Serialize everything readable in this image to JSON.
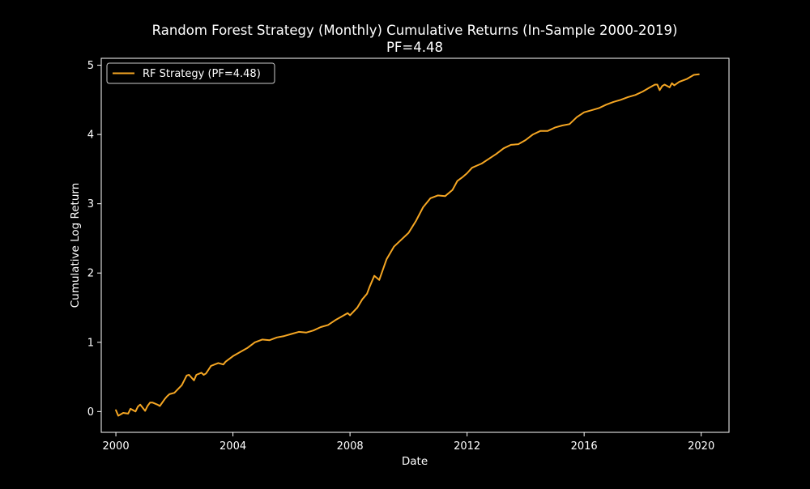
{
  "chart_data": {
    "type": "line",
    "title": "Random Forest Strategy (Monthly) Cumulative Returns (In-Sample 2000-2019)",
    "subtitle": "PF=4.48",
    "xlabel": "Date",
    "ylabel": "Cumulative Log Return",
    "xlim": [
      1999.5,
      2020.95
    ],
    "ylim": [
      -0.3,
      5.1
    ],
    "x_ticks": [
      2000,
      2004,
      2008,
      2012,
      2016,
      2020
    ],
    "x_tick_labels": [
      "2000",
      "2004",
      "2008",
      "2012",
      "2016",
      "2020"
    ],
    "y_ticks": [
      0,
      1,
      2,
      3,
      4,
      5
    ],
    "y_tick_labels": [
      "0",
      "1",
      "2",
      "3",
      "4",
      "5"
    ],
    "legend_position": "top-left",
    "grid": false,
    "colors": {
      "background": "#000000",
      "axes": "#ffffff",
      "series": "#f5a623"
    },
    "series": [
      {
        "name": "RF Strategy (PF=4.48)",
        "x": [
          2000.0,
          2000.08,
          2000.25,
          2000.42,
          2000.5,
          2000.67,
          2000.75,
          2000.83,
          2001.0,
          2001.08,
          2001.17,
          2001.25,
          2001.42,
          2001.5,
          2001.67,
          2001.75,
          2001.83,
          2002.0,
          2002.25,
          2002.42,
          2002.5,
          2002.67,
          2002.75,
          2002.92,
          2003.0,
          2003.08,
          2003.25,
          2003.5,
          2003.67,
          2003.75,
          2004.0,
          2004.25,
          2004.5,
          2004.75,
          2005.0,
          2005.25,
          2005.5,
          2005.75,
          2006.0,
          2006.25,
          2006.5,
          2006.75,
          2007.0,
          2007.25,
          2007.5,
          2007.75,
          2007.92,
          2008.0,
          2008.25,
          2008.42,
          2008.5,
          2008.58,
          2008.67,
          2008.83,
          2009.0,
          2009.25,
          2009.5,
          2009.75,
          2010.0,
          2010.25,
          2010.5,
          2010.75,
          2011.0,
          2011.25,
          2011.5,
          2011.67,
          2011.83,
          2012.0,
          2012.17,
          2012.33,
          2012.5,
          2012.75,
          2013.0,
          2013.25,
          2013.5,
          2013.75,
          2014.0,
          2014.25,
          2014.5,
          2014.75,
          2015.0,
          2015.25,
          2015.5,
          2015.75,
          2016.0,
          2016.25,
          2016.5,
          2016.75,
          2017.0,
          2017.25,
          2017.5,
          2017.75,
          2018.0,
          2018.25,
          2018.42,
          2018.5,
          2018.58,
          2018.67,
          2018.75,
          2018.92,
          2019.0,
          2019.08,
          2019.25,
          2019.5,
          2019.75,
          2019.92
        ],
        "values": [
          0.02,
          -0.06,
          -0.02,
          -0.03,
          0.04,
          0.0,
          0.07,
          0.1,
          0.01,
          0.08,
          0.13,
          0.13,
          0.1,
          0.08,
          0.18,
          0.22,
          0.25,
          0.27,
          0.38,
          0.52,
          0.53,
          0.45,
          0.53,
          0.56,
          0.53,
          0.55,
          0.66,
          0.7,
          0.68,
          0.72,
          0.8,
          0.86,
          0.92,
          1.0,
          1.04,
          1.03,
          1.07,
          1.09,
          1.12,
          1.15,
          1.14,
          1.17,
          1.22,
          1.25,
          1.32,
          1.38,
          1.42,
          1.39,
          1.5,
          1.62,
          1.66,
          1.7,
          1.8,
          1.96,
          1.9,
          2.2,
          2.38,
          2.48,
          2.58,
          2.75,
          2.95,
          3.08,
          3.12,
          3.11,
          3.2,
          3.33,
          3.38,
          3.44,
          3.52,
          3.55,
          3.58,
          3.65,
          3.72,
          3.8,
          3.85,
          3.86,
          3.92,
          4.0,
          4.05,
          4.05,
          4.1,
          4.13,
          4.15,
          4.25,
          4.32,
          4.35,
          4.38,
          4.43,
          4.47,
          4.5,
          4.54,
          4.57,
          4.62,
          4.68,
          4.72,
          4.72,
          4.64,
          4.7,
          4.72,
          4.68,
          4.74,
          4.71,
          4.76,
          4.8,
          4.86,
          4.87
        ]
      }
    ]
  }
}
